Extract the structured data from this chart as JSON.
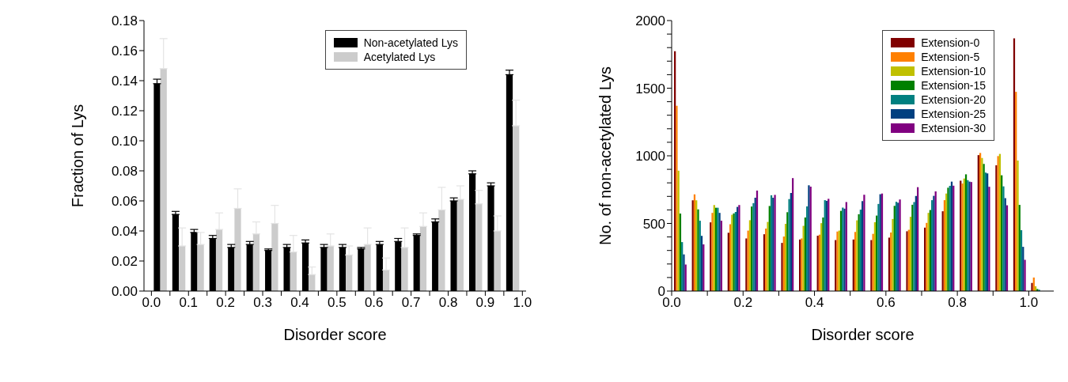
{
  "chart_data": [
    {
      "type": "bar",
      "xlabel": "Disorder score",
      "ylabel": "Fraction of Lys",
      "x": [
        0.025,
        0.075,
        0.125,
        0.175,
        0.225,
        0.275,
        0.325,
        0.375,
        0.425,
        0.475,
        0.525,
        0.575,
        0.625,
        0.675,
        0.725,
        0.775,
        0.825,
        0.875,
        0.925,
        0.975
      ],
      "series": [
        {
          "name": "Non-acetylated Lys",
          "color": "#000000",
          "values": [
            0.138,
            0.051,
            0.039,
            0.035,
            0.029,
            0.031,
            0.027,
            0.029,
            0.032,
            0.029,
            0.029,
            0.028,
            0.031,
            0.033,
            0.037,
            0.046,
            0.06,
            0.078,
            0.07,
            0.144
          ],
          "errors": [
            [
              0.138,
              0.141
            ],
            [
              0.051,
              0.053
            ],
            [
              0.039,
              0.041
            ],
            [
              0.035,
              0.037
            ],
            [
              0.029,
              0.031
            ],
            [
              0.031,
              0.033
            ],
            [
              0.027,
              0.028
            ],
            [
              0.029,
              0.031
            ],
            [
              0.032,
              0.034
            ],
            [
              0.029,
              0.031
            ],
            [
              0.029,
              0.031
            ],
            [
              0.028,
              0.029
            ],
            [
              0.031,
              0.033
            ],
            [
              0.033,
              0.035
            ],
            [
              0.037,
              0.038
            ],
            [
              0.046,
              0.048
            ],
            [
              0.06,
              0.062
            ],
            [
              0.078,
              0.08
            ],
            [
              0.07,
              0.072
            ],
            [
              0.144,
              0.147
            ]
          ]
        },
        {
          "name": "Acetylated Lys",
          "color": "#cccccc",
          "values": [
            0.148,
            0.03,
            0.031,
            0.041,
            0.055,
            0.038,
            0.045,
            0.026,
            0.011,
            0.03,
            0.024,
            0.031,
            0.014,
            0.029,
            0.043,
            0.054,
            0.061,
            0.058,
            0.04,
            0.11
          ],
          "errors": [
            [
              0.148,
              0.168
            ],
            [
              0.03,
              0.042
            ],
            [
              0.031,
              0.039
            ],
            [
              0.041,
              0.052
            ],
            [
              0.055,
              0.068
            ],
            [
              0.038,
              0.046
            ],
            [
              0.045,
              0.057
            ],
            [
              0.026,
              0.037
            ],
            [
              0.011,
              0.016
            ],
            [
              0.03,
              0.038
            ],
            [
              0.024,
              0.03
            ],
            [
              0.031,
              0.042
            ],
            [
              0.014,
              0.022
            ],
            [
              0.029,
              0.042
            ],
            [
              0.043,
              0.052
            ],
            [
              0.054,
              0.069
            ],
            [
              0.061,
              0.07
            ],
            [
              0.058,
              0.067
            ],
            [
              0.04,
              0.05
            ],
            [
              0.11,
              0.127
            ]
          ]
        }
      ],
      "xlim": [
        -0.02,
        1.01
      ],
      "xticks": [
        {
          "value": 0,
          "label": "0.0"
        },
        {
          "value": 0.05,
          "label": null
        },
        {
          "value": 0.1,
          "label": "0.1"
        },
        {
          "value": 0.15,
          "label": null
        },
        {
          "value": 0.2,
          "label": "0.2"
        },
        {
          "value": 0.25,
          "label": null
        },
        {
          "value": 0.3,
          "label": "0.3"
        },
        {
          "value": 0.35,
          "label": null
        },
        {
          "value": 0.4,
          "label": "0.4"
        },
        {
          "value": 0.45,
          "label": null
        },
        {
          "value": 0.5,
          "label": "0.5"
        },
        {
          "value": 0.55,
          "label": null
        },
        {
          "value": 0.6,
          "label": "0.6"
        },
        {
          "value": 0.65,
          "label": null
        },
        {
          "value": 0.7,
          "label": "0.7"
        },
        {
          "value": 0.75,
          "label": null
        },
        {
          "value": 0.8,
          "label": "0.8"
        },
        {
          "value": 0.85,
          "label": null
        },
        {
          "value": 0.9,
          "label": "0.9"
        },
        {
          "value": 0.95,
          "label": null
        },
        {
          "value": 1,
          "label": "1.0"
        }
      ],
      "ylim": [
        0,
        0.18
      ],
      "yticks": [
        {
          "value": 0,
          "label": "0.00"
        },
        {
          "value": 0.02,
          "label": "0.02"
        },
        {
          "value": 0.04,
          "label": "0.04"
        },
        {
          "value": 0.06,
          "label": "0.06"
        },
        {
          "value": 0.08,
          "label": "0.08"
        },
        {
          "value": 0.1,
          "label": "0.10"
        },
        {
          "value": 0.12,
          "label": "0.12"
        },
        {
          "value": 0.14,
          "label": "0.14"
        },
        {
          "value": 0.16,
          "label": "0.16"
        },
        {
          "value": 0.18,
          "label": "0.18"
        }
      ],
      "legend": "top right",
      "grid": false
    },
    {
      "type": "bar",
      "xlabel": "Disorder score",
      "ylabel": "No. of non-acetylated Lys",
      "x": [
        0.025,
        0.075,
        0.125,
        0.175,
        0.225,
        0.275,
        0.325,
        0.375,
        0.425,
        0.475,
        0.525,
        0.575,
        0.625,
        0.675,
        0.725,
        0.775,
        0.825,
        0.875,
        0.925,
        0.975,
        1.025
      ],
      "series": [
        {
          "name": "Extension-0",
          "color": "#800000",
          "values": [
            1774,
            671,
            508,
            431,
            389,
            420,
            356,
            381,
            409,
            377,
            381,
            377,
            395,
            442,
            469,
            590,
            816,
            1005,
            930,
            1869,
            60
          ]
        },
        {
          "name": "Extension-5",
          "color": "#ff8000",
          "values": [
            1370,
            715,
            578,
            494,
            447,
            462,
            403,
            389,
            417,
            440,
            437,
            423,
            433,
            453,
            504,
            672,
            795,
            1021,
            998,
            1473,
            100
          ]
        },
        {
          "name": "Extension-10",
          "color": "#c0c000",
          "values": [
            890,
            671,
            636,
            564,
            524,
            511,
            497,
            482,
            502,
            447,
            523,
            509,
            533,
            549,
            578,
            721,
            832,
            984,
            1014,
            965,
            35
          ]
        },
        {
          "name": "Extension-15",
          "color": "#008000",
          "values": [
            573,
            604,
            616,
            574,
            625,
            629,
            583,
            544,
            544,
            593,
            568,
            558,
            630,
            638,
            599,
            764,
            863,
            940,
            856,
            637,
            15
          ]
        },
        {
          "name": "Extension-20",
          "color": "#008080",
          "values": [
            362,
            520,
            616,
            585,
            650,
            708,
            680,
            626,
            672,
            617,
            602,
            644,
            660,
            658,
            672,
            778,
            820,
            876,
            774,
            450,
            10
          ]
        },
        {
          "name": "Extension-25",
          "color": "#004080",
          "values": [
            271,
            408,
            578,
            622,
            690,
            690,
            725,
            782,
            667,
            609,
            665,
            716,
            653,
            703,
            704,
            809,
            809,
            870,
            687,
            327,
            null
          ]
        },
        {
          "name": "Extension-30",
          "color": "#800080",
          "values": [
            196,
            345,
            520,
            636,
            743,
            711,
            835,
            772,
            682,
            658,
            712,
            721,
            677,
            768,
            737,
            779,
            806,
            771,
            634,
            231,
            null
          ]
        }
      ],
      "xlim": [
        0,
        1.07
      ],
      "xticks": [
        {
          "value": 0,
          "label": "0.0"
        },
        {
          "value": 0.1,
          "label": null
        },
        {
          "value": 0.2,
          "label": "0.2"
        },
        {
          "value": 0.3,
          "label": null
        },
        {
          "value": 0.4,
          "label": "0.4"
        },
        {
          "value": 0.5,
          "label": null
        },
        {
          "value": 0.6,
          "label": "0.6"
        },
        {
          "value": 0.7,
          "label": null
        },
        {
          "value": 0.8,
          "label": "0.8"
        },
        {
          "value": 0.9,
          "label": null
        },
        {
          "value": 1,
          "label": "1.0"
        }
      ],
      "ylim": [
        0,
        2000
      ],
      "yticks": [
        0,
        {
          "value": 100,
          "label": null
        },
        {
          "value": 200,
          "label": null
        },
        {
          "value": 300,
          "label": null
        },
        {
          "value": 400,
          "label": null
        },
        500,
        {
          "value": 600,
          "label": null
        },
        {
          "value": 700,
          "label": null
        },
        {
          "value": 800,
          "label": null
        },
        {
          "value": 900,
          "label": null
        },
        1000,
        {
          "value": 1100,
          "label": null
        },
        {
          "value": 1200,
          "label": null
        },
        {
          "value": 1300,
          "label": null
        },
        {
          "value": 1400,
          "label": null
        },
        1500,
        {
          "value": 1600,
          "label": null
        },
        {
          "value": 1700,
          "label": null
        },
        {
          "value": 1800,
          "label": null
        },
        {
          "value": 1900,
          "label": null
        },
        2000
      ],
      "legend": "top right",
      "grid": false
    }
  ]
}
